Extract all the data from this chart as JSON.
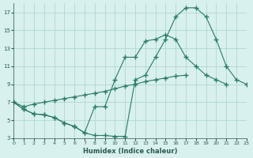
{
  "xlabel": "Humidex (Indice chaleur)",
  "ylabel": "",
  "bg_color": "#d8f0ee",
  "grid_color": "#b0d8d4",
  "line_color": "#2a7a6a",
  "xlim": [
    0,
    23
  ],
  "ylim": [
    3,
    18
  ],
  "xticks": [
    0,
    1,
    2,
    3,
    4,
    5,
    6,
    7,
    8,
    9,
    10,
    11,
    12,
    13,
    14,
    15,
    16,
    17,
    18,
    19,
    20,
    21,
    22,
    23
  ],
  "yticks": [
    3,
    5,
    7,
    9,
    11,
    13,
    15,
    17
  ],
  "line1_x": [
    0,
    1,
    2,
    3,
    4,
    5,
    6,
    7,
    8,
    9,
    10,
    11,
    12,
    13,
    14,
    15,
    16,
    17,
    18,
    19,
    20,
    21,
    22,
    23
  ],
  "line1_y": [
    7.0,
    6.2,
    5.7,
    5.6,
    5.3,
    4.7,
    4.3,
    3.6,
    3.3,
    3.3,
    3.2,
    3.2,
    9.5,
    10.0,
    12.0,
    14.0,
    16.5,
    17.5,
    17.5,
    16.5,
    14.0,
    11.0,
    9.5,
    9.0
  ],
  "line2_x": [
    0,
    1,
    2,
    3,
    4,
    5,
    6,
    7,
    8,
    9,
    10,
    11,
    12,
    13,
    14,
    15,
    16,
    17,
    18,
    19,
    20,
    21,
    22,
    23
  ],
  "line2_y": [
    7.0,
    6.2,
    5.7,
    5.6,
    5.3,
    4.7,
    4.3,
    3.6,
    6.5,
    6.5,
    9.5,
    12.0,
    12.0,
    13.8,
    14.0,
    14.5,
    14.0,
    12.0,
    11.0,
    10.0,
    9.5,
    9.0,
    null,
    null
  ],
  "line3_x": [
    0,
    1,
    2,
    3,
    4,
    5,
    6,
    7,
    8,
    9,
    10,
    11,
    12,
    13,
    14,
    15,
    16,
    17,
    18,
    19,
    20,
    21,
    22,
    23
  ],
  "line3_y": [
    7.0,
    6.5,
    6.8,
    7.0,
    7.2,
    7.4,
    7.6,
    7.8,
    8.0,
    8.2,
    8.5,
    8.8,
    9.0,
    9.3,
    9.5,
    9.7,
    9.9,
    10.0,
    null,
    null,
    null,
    null,
    null,
    null
  ]
}
